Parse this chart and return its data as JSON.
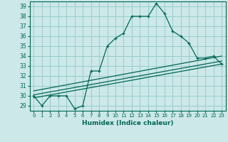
{
  "title": "",
  "xlabel": "Humidex (Indice chaleur)",
  "background_color": "#cce8e8",
  "grid_color": "#99cccc",
  "line_color": "#006655",
  "xlim": [
    -0.5,
    23.5
  ],
  "ylim": [
    28.5,
    39.5
  ],
  "yticks": [
    29,
    30,
    31,
    32,
    33,
    34,
    35,
    36,
    37,
    38,
    39
  ],
  "xticks": [
    0,
    1,
    2,
    3,
    4,
    5,
    6,
    7,
    8,
    9,
    10,
    11,
    12,
    13,
    14,
    15,
    16,
    17,
    18,
    19,
    20,
    21,
    22,
    23
  ],
  "main_x": [
    0,
    1,
    2,
    3,
    4,
    5,
    6,
    7,
    8,
    9,
    10,
    11,
    12,
    13,
    14,
    15,
    16,
    17,
    18,
    19,
    20,
    21,
    22,
    23
  ],
  "main_y": [
    30.0,
    29.0,
    30.0,
    30.0,
    30.0,
    28.7,
    29.0,
    32.5,
    32.5,
    35.0,
    35.8,
    36.3,
    38.0,
    38.0,
    38.0,
    39.3,
    38.3,
    36.5,
    36.0,
    35.3,
    33.8,
    33.8,
    34.0,
    33.2
  ],
  "line1_x": [
    0,
    23
  ],
  "line1_y": [
    29.8,
    33.2
  ],
  "line2_x": [
    0,
    23
  ],
  "line2_y": [
    30.1,
    33.5
  ],
  "line3_x": [
    0,
    23
  ],
  "line3_y": [
    30.5,
    34.0
  ]
}
